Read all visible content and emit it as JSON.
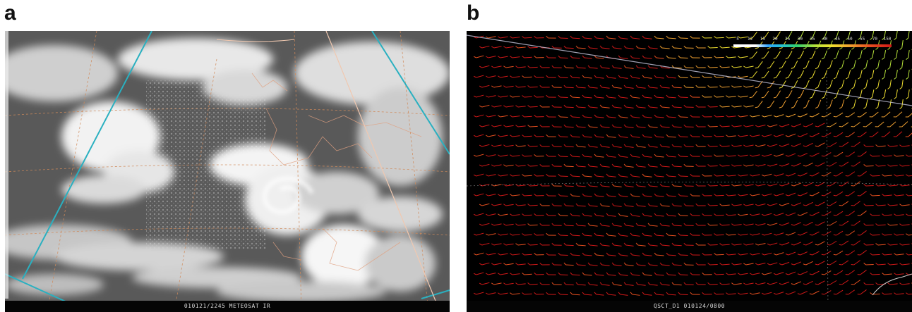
{
  "panels": [
    {
      "label": "a",
      "caption": "010121/2245 METEOSAT  IR"
    },
    {
      "label": "b",
      "caption": "QSCT_D1 010124/0800"
    }
  ],
  "wind_scale": {
    "ticks": [
      "5",
      "12",
      "15",
      "20",
      "25",
      "30",
      "35",
      "40",
      "45",
      "50",
      "55",
      "70",
      "150"
    ],
    "colors": [
      "#ffffff",
      "#2fa6ff",
      "#27c2d8",
      "#30d070",
      "#b7e23a",
      "#f0e030",
      "#f0a030",
      "#e85020",
      "#d01818"
    ]
  }
}
